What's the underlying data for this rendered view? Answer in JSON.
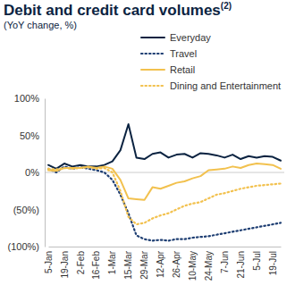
{
  "chart_data": {
    "type": "line",
    "title": "Debit and credit card volumes",
    "title_footnote": "(2)",
    "subtitle": "(YoY change, %)",
    "categories": [
      "5-Jan",
      null,
      "19-Jan",
      null,
      "2-Feb",
      null,
      "16-Feb",
      null,
      "1-Mar",
      null,
      "15-Mar",
      null,
      "29-Mar",
      null,
      "12-Apr",
      null,
      "26-Apr",
      null,
      "10-May",
      null,
      "24-May",
      null,
      "7-Jun",
      null,
      "21-Jun",
      null,
      "5-Jul",
      null,
      "19-Jul",
      null
    ],
    "series": [
      {
        "name": "Everyday",
        "color": "#0b2341",
        "line_style": "solid",
        "values": [
          10,
          5,
          12,
          8,
          10,
          8,
          8,
          10,
          15,
          30,
          65,
          20,
          18,
          25,
          27,
          20,
          24,
          25,
          20,
          26,
          25,
          23,
          20,
          24,
          18,
          22,
          20,
          22,
          21,
          16
        ]
      },
      {
        "name": "Travel",
        "color": "#1f3f73",
        "line_style": "dotted",
        "values": [
          5,
          0,
          8,
          5,
          7,
          5,
          3,
          0,
          -10,
          -30,
          -55,
          -85,
          -90,
          -92,
          -91,
          -92,
          -90,
          -90,
          -88,
          -87,
          -86,
          -84,
          -82,
          -80,
          -78,
          -76,
          -74,
          -72,
          -70,
          -68
        ]
      },
      {
        "name": "Retail",
        "color": "#f2c14e",
        "line_style": "solid",
        "values": [
          3,
          2,
          6,
          6,
          6,
          8,
          6,
          8,
          5,
          -10,
          -35,
          -36,
          -37,
          -20,
          -22,
          -18,
          -14,
          -12,
          -8,
          -5,
          3,
          4,
          5,
          8,
          6,
          10,
          12,
          11,
          10,
          5
        ]
      },
      {
        "name": "Dining and Entertainment",
        "color": "#f2c14e",
        "line_style": "dotted",
        "values": [
          5,
          4,
          6,
          5,
          6,
          7,
          5,
          6,
          0,
          -25,
          -60,
          -70,
          -68,
          -62,
          -58,
          -55,
          -50,
          -45,
          -42,
          -40,
          -35,
          -30,
          -28,
          -25,
          -22,
          -20,
          -18,
          -17,
          -16,
          -15
        ]
      }
    ],
    "ylim": [
      -100,
      100
    ],
    "yticks": [
      {
        "value": 100,
        "label": "100%"
      },
      {
        "value": 50,
        "label": "50%"
      },
      {
        "value": 0,
        "label": "0%"
      },
      {
        "value": -50,
        "label": "(50%)"
      },
      {
        "value": -100,
        "label": "(100%)"
      }
    ],
    "grid": false,
    "legend": "top-right"
  }
}
